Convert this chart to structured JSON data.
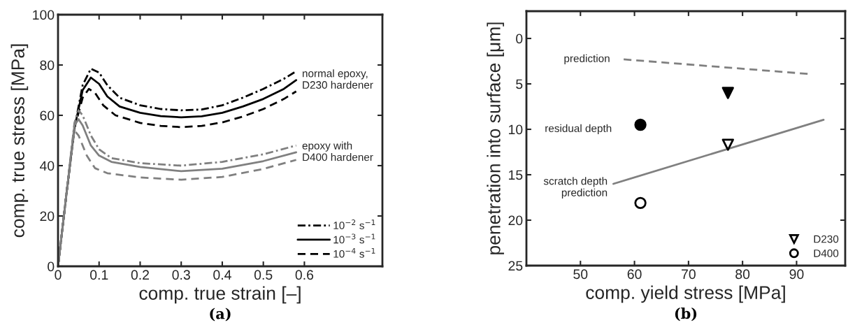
{
  "chart_data": [
    {
      "type": "line",
      "xlabel": "comp. true strain [–]",
      "ylabel": "comp. true stress [MPa]",
      "xlim": [
        0,
        0.79
      ],
      "ylim": [
        0,
        100
      ],
      "xticks": [
        0,
        0.1,
        0.2,
        0.3,
        0.4,
        0.5,
        0.6
      ],
      "yticks": [
        0,
        20,
        40,
        60,
        80,
        100
      ],
      "grid": false,
      "legend": "bottom right",
      "marker": "none",
      "series": [
        {
          "name": "10$^{−2}$ s$^{−1}$",
          "color": "#000000",
          "line_style": "dashdot",
          "x": [
            0,
            0.02,
            0.04,
            0.06,
            0.08,
            0.1,
            0.12,
            0.15,
            0.2,
            0.25,
            0.3,
            0.35,
            0.4,
            0.45,
            0.5,
            0.55,
            0.58
          ],
          "values": [
            0,
            28,
            55,
            72,
            78.5,
            77,
            72,
            67,
            64,
            62.5,
            62,
            62.3,
            64,
            67,
            70.5,
            74.5,
            77.5
          ]
        },
        {
          "name": "10$^{−3}$ s$^{−1}$",
          "color": "#000000",
          "line_style": "solid",
          "x": [
            0,
            0.02,
            0.04,
            0.06,
            0.08,
            0.1,
            0.12,
            0.15,
            0.2,
            0.25,
            0.3,
            0.35,
            0.4,
            0.45,
            0.5,
            0.55,
            0.58
          ],
          "values": [
            0,
            28,
            55,
            70,
            75,
            72.5,
            67.5,
            63.5,
            61,
            59.7,
            59.2,
            59.6,
            61,
            63.5,
            66.5,
            70.5,
            74
          ]
        },
        {
          "name": "10$^{−4}$ s$^{−1}$",
          "color": "#000000",
          "line_style": "dashed",
          "x": [
            0,
            0.02,
            0.04,
            0.06,
            0.075,
            0.09,
            0.11,
            0.14,
            0.2,
            0.25,
            0.3,
            0.35,
            0.4,
            0.45,
            0.5,
            0.55,
            0.58
          ],
          "values": [
            0,
            28,
            55,
            67,
            70.5,
            69,
            64,
            60,
            57,
            55.8,
            55.3,
            55.8,
            57.2,
            59.5,
            62.5,
            66.5,
            69.5
          ]
        },
        {
          "color": "#808080",
          "line_style": "dashdot",
          "x": [
            0,
            0.02,
            0.04,
            0.05,
            0.06,
            0.08,
            0.1,
            0.13,
            0.2,
            0.3,
            0.4,
            0.5,
            0.58
          ],
          "values": [
            0,
            28,
            57,
            62,
            60,
            52,
            46.5,
            43,
            41,
            40,
            41.5,
            44.5,
            48
          ]
        },
        {
          "color": "#808080",
          "line_style": "solid",
          "x": [
            0,
            0.02,
            0.04,
            0.05,
            0.06,
            0.08,
            0.1,
            0.13,
            0.2,
            0.3,
            0.4,
            0.5,
            0.58
          ],
          "values": [
            0,
            28,
            56,
            58.5,
            56,
            48,
            44,
            41.5,
            39.5,
            37.8,
            38.8,
            41.8,
            45.3
          ]
        },
        {
          "color": "#808080",
          "line_style": "dashed",
          "x": [
            0,
            0.02,
            0.04,
            0.05,
            0.07,
            0.09,
            0.12,
            0.2,
            0.3,
            0.4,
            0.5,
            0.58
          ],
          "values": [
            0,
            28,
            54,
            52,
            44,
            39,
            37,
            35.3,
            34.4,
            35.5,
            38.7,
            42.3
          ]
        }
      ],
      "annotations": [
        {
          "text": "normal epoxy,\nD230 hardener",
          "x": 0.58,
          "y": 74
        },
        {
          "text": "epoxy with\nD400 hardener",
          "x": 0.58,
          "y": 45.3
        },
        "(a)"
      ]
    },
    {
      "type": "scatter",
      "xlabel": "comp. yield stress [MPa]",
      "ylabel": "penetration into surface [μm]",
      "xlim": [
        40,
        99
      ],
      "ylim": [
        25,
        -3
      ],
      "xticks": [
        50,
        60,
        70,
        80,
        90
      ],
      "yticks": [
        0,
        5,
        10,
        15,
        20,
        25
      ],
      "grid": false,
      "legend": "bottom right",
      "series": [
        {
          "type": "line",
          "color": "#808080",
          "line_style": "dashed",
          "marker": "none",
          "x": [
            58,
            92.1
          ],
          "values": [
            2.3,
            3.9
          ]
        },
        {
          "type": "line",
          "color": "#808080",
          "line_style": "solid",
          "marker": "none",
          "x": [
            56.1,
            95
          ],
          "values": [
            16,
            8.95
          ]
        },
        {
          "color": "#000000",
          "marker": "triangle",
          "x": [
            77.3
          ],
          "values": [
            6.0
          ]
        },
        {
          "name": "D230",
          "color": "#ffffff",
          "marker": "triangle",
          "x": [
            77.3
          ],
          "values": [
            11.7
          ]
        },
        {
          "name": "D400",
          "color": "#ffffff",
          "marker": "circle",
          "x": [
            61.1
          ],
          "values": [
            18.1
          ]
        },
        {
          "color": "#000000",
          "marker": "circle",
          "x": [
            61.1
          ],
          "values": [
            9.5
          ]
        }
      ],
      "annotations": [
        {
          "text": "prediction",
          "x": 58,
          "y": 2.3
        },
        "residual depth",
        {
          "text": "scratch depth\nprediction",
          "x": 56.1,
          "y": 16
        },
        "(b)"
      ]
    }
  ]
}
